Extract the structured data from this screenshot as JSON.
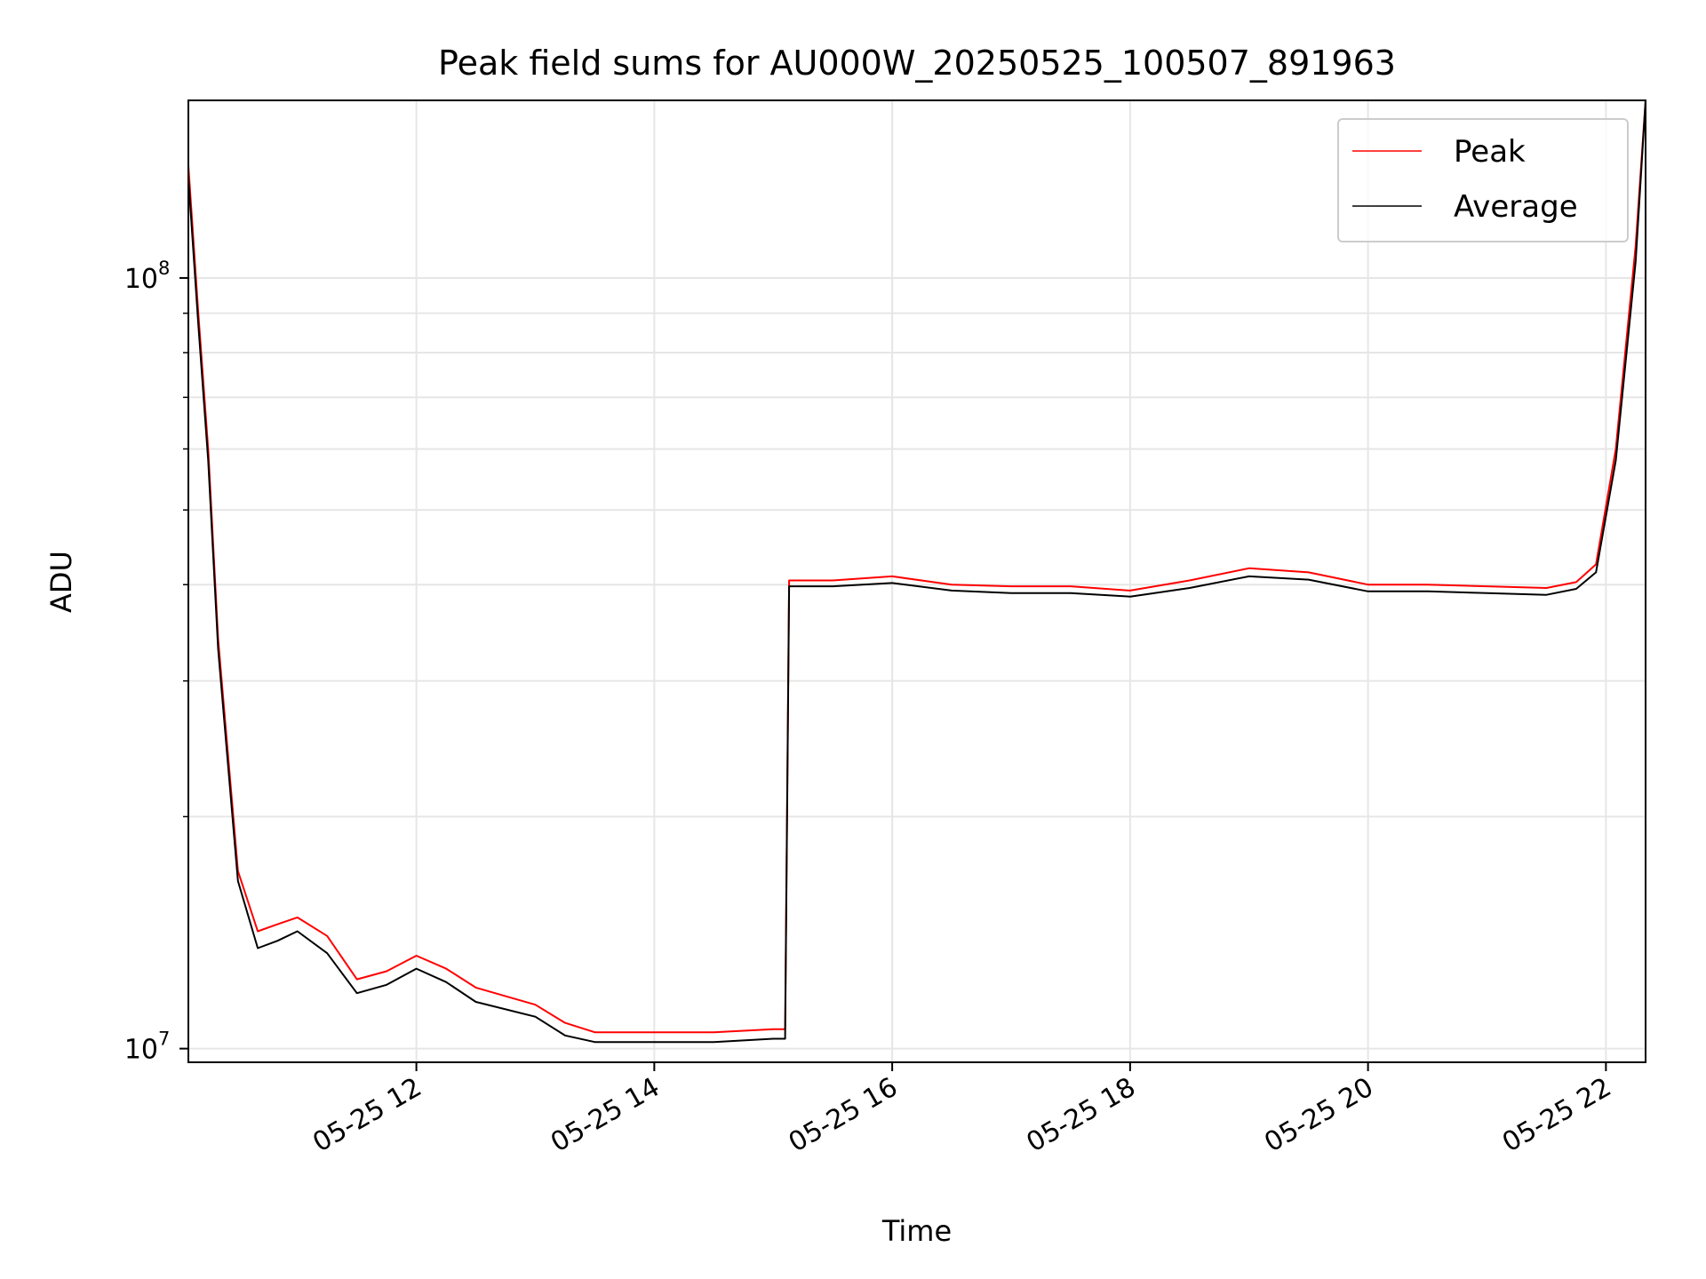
{
  "chart_data": {
    "type": "line",
    "title": "Peak field sums for AU000W_20250525_100507_891963",
    "xlabel": "Time",
    "ylabel": "ADU",
    "x_axis": {
      "kind": "datetime",
      "range": [
        "2025-05-25 10:05",
        "2025-05-25 22:20"
      ],
      "ticks": [
        {
          "value": "2025-05-25 12:00",
          "label": "05-25 12"
        },
        {
          "value": "2025-05-25 14:00",
          "label": "05-25 14"
        },
        {
          "value": "2025-05-25 16:00",
          "label": "05-25 16"
        },
        {
          "value": "2025-05-25 18:00",
          "label": "05-25 18"
        },
        {
          "value": "2025-05-25 20:00",
          "label": "05-25 20"
        },
        {
          "value": "2025-05-25 22:00",
          "label": "05-25 22"
        }
      ]
    },
    "y_axis": {
      "scale": "log",
      "range": [
        9600000,
        170000000
      ],
      "major_ticks": [
        {
          "value": 10000000,
          "base": "10",
          "exp": "7"
        },
        {
          "value": 100000000,
          "base": "10",
          "exp": "8"
        }
      ],
      "minor_ticks": [
        20000000,
        30000000,
        40000000,
        50000000,
        60000000,
        70000000,
        80000000,
        90000000
      ]
    },
    "grid": true,
    "legend": {
      "position": "top-right",
      "entries": [
        "Peak",
        "Average"
      ]
    },
    "colors": {
      "Peak": "#ff0000",
      "Average": "#000000"
    },
    "series": [
      {
        "name": "Peak",
        "color": "#ff0000",
        "x": [
          "2025-05-25 10:05",
          "2025-05-25 10:10",
          "2025-05-25 10:15",
          "2025-05-25 10:20",
          "2025-05-25 10:30",
          "2025-05-25 10:40",
          "2025-05-25 10:50",
          "2025-05-25 11:00",
          "2025-05-25 11:15",
          "2025-05-25 11:30",
          "2025-05-25 11:45",
          "2025-05-25 12:00",
          "2025-05-25 12:15",
          "2025-05-25 12:30",
          "2025-05-25 13:00",
          "2025-05-25 13:15",
          "2025-05-25 13:30",
          "2025-05-25 14:00",
          "2025-05-25 14:30",
          "2025-05-25 15:00",
          "2025-05-25 15:06",
          "2025-05-25 15:08",
          "2025-05-25 15:30",
          "2025-05-25 16:00",
          "2025-05-25 16:30",
          "2025-05-25 17:00",
          "2025-05-25 17:30",
          "2025-05-25 18:00",
          "2025-05-25 18:30",
          "2025-05-25 19:00",
          "2025-05-25 19:30",
          "2025-05-25 20:00",
          "2025-05-25 20:30",
          "2025-05-25 21:00",
          "2025-05-25 21:30",
          "2025-05-25 21:45",
          "2025-05-25 21:55",
          "2025-05-25 22:05",
          "2025-05-25 22:15",
          "2025-05-25 22:20"
        ],
        "y": [
          140000000,
          90000000,
          60000000,
          34000000,
          17000000,
          14200000,
          14500000,
          14800000,
          14000000,
          12300000,
          12600000,
          13200000,
          12700000,
          12000000,
          11400000,
          10800000,
          10500000,
          10500000,
          10500000,
          10600000,
          10600000,
          40500000,
          40500000,
          41000000,
          40000000,
          39800000,
          39800000,
          39300000,
          40500000,
          42000000,
          41500000,
          40000000,
          40000000,
          39800000,
          39600000,
          40300000,
          42500000,
          60000000,
          110000000,
          170000000
        ]
      },
      {
        "name": "Average",
        "color": "#000000",
        "x": [
          "2025-05-25 10:05",
          "2025-05-25 10:10",
          "2025-05-25 10:15",
          "2025-05-25 10:20",
          "2025-05-25 10:30",
          "2025-05-25 10:40",
          "2025-05-25 10:50",
          "2025-05-25 11:00",
          "2025-05-25 11:15",
          "2025-05-25 11:30",
          "2025-05-25 11:45",
          "2025-05-25 12:00",
          "2025-05-25 12:15",
          "2025-05-25 12:30",
          "2025-05-25 13:00",
          "2025-05-25 13:15",
          "2025-05-25 13:30",
          "2025-05-25 14:00",
          "2025-05-25 14:30",
          "2025-05-25 15:00",
          "2025-05-25 15:06",
          "2025-05-25 15:08",
          "2025-05-25 15:30",
          "2025-05-25 16:00",
          "2025-05-25 16:30",
          "2025-05-25 17:00",
          "2025-05-25 17:30",
          "2025-05-25 18:00",
          "2025-05-25 18:30",
          "2025-05-25 19:00",
          "2025-05-25 19:30",
          "2025-05-25 20:00",
          "2025-05-25 20:30",
          "2025-05-25 21:00",
          "2025-05-25 21:30",
          "2025-05-25 21:45",
          "2025-05-25 21:55",
          "2025-05-25 22:05",
          "2025-05-25 22:15",
          "2025-05-25 22:20"
        ],
        "y": [
          135000000,
          87000000,
          58000000,
          33000000,
          16500000,
          13500000,
          13800000,
          14200000,
          13300000,
          11800000,
          12100000,
          12700000,
          12200000,
          11500000,
          11000000,
          10400000,
          10200000,
          10200000,
          10200000,
          10300000,
          10300000,
          39800000,
          39800000,
          40200000,
          39300000,
          39000000,
          39000000,
          38600000,
          39600000,
          41000000,
          40600000,
          39200000,
          39200000,
          39000000,
          38800000,
          39500000,
          41500000,
          58000000,
          105000000,
          170000000
        ]
      }
    ]
  }
}
